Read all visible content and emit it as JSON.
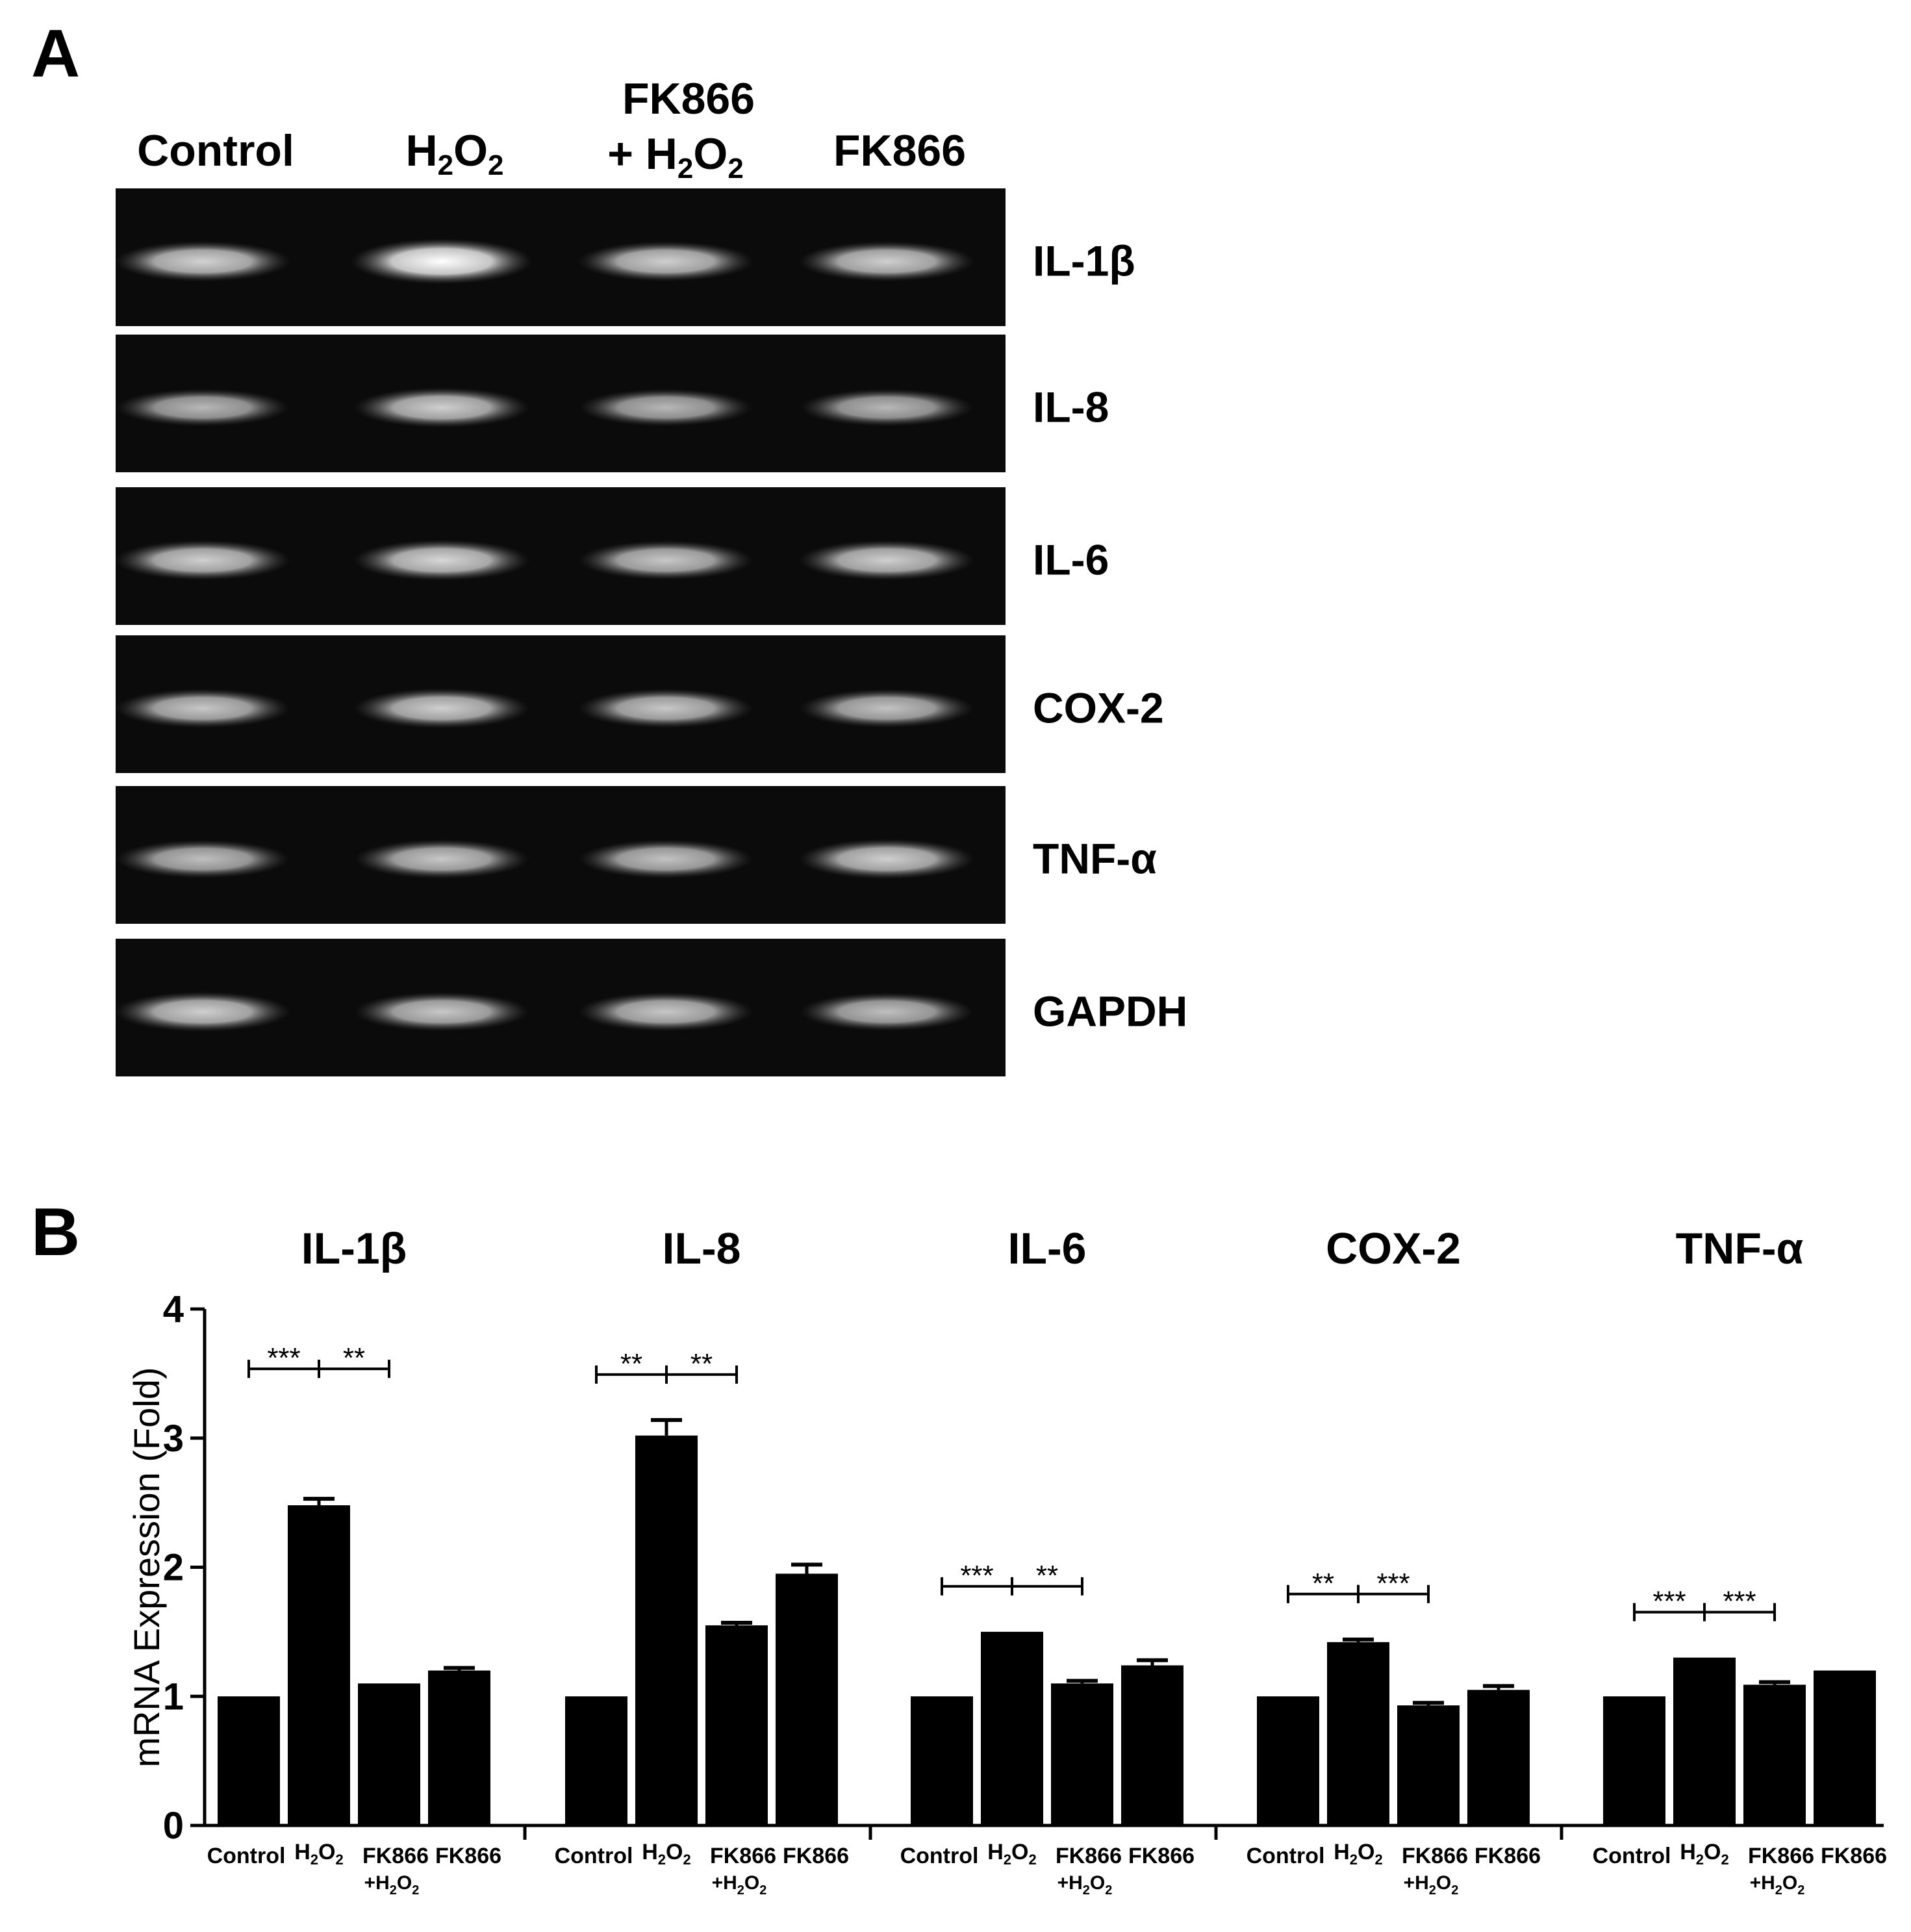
{
  "panel_a": {
    "label": "A",
    "lanes": [
      {
        "main": "Control",
        "sub": ""
      },
      {
        "main": "H",
        "sub": "2",
        "main2": "O",
        "sub2": "2"
      },
      {
        "line1": "FK866",
        "line2_main": "+ H",
        "sub": "2",
        "main2": "O",
        "sub2": "2"
      },
      {
        "main": "FK866",
        "sub": ""
      }
    ],
    "genes": [
      "IL-1β",
      "IL-8",
      "IL-6",
      "COX-2",
      "TNF-α",
      "GAPDH"
    ],
    "band_intensity": [
      [
        0.72,
        1.0,
        0.7,
        0.7
      ],
      [
        0.55,
        0.7,
        0.55,
        0.55
      ],
      [
        0.7,
        0.75,
        0.65,
        0.7
      ],
      [
        0.65,
        0.7,
        0.65,
        0.62
      ],
      [
        0.6,
        0.65,
        0.62,
        0.7
      ],
      [
        0.7,
        0.65,
        0.65,
        0.6
      ]
    ]
  },
  "panel_b": {
    "label": "B",
    "x_tick_labels": [
      "Control",
      "H2O2",
      "FK866 +H2O2",
      "FK866"
    ]
  },
  "chart_data": {
    "type": "bar",
    "ylabel": "mRNA Expression (Fold)",
    "ylim": [
      0,
      4
    ],
    "yticks": [
      0,
      1,
      2,
      3,
      4
    ],
    "groups": [
      {
        "name": "IL-1β",
        "categories": [
          "Control",
          "H2O2",
          "FK866 +H2O2",
          "FK866"
        ],
        "values": [
          1.0,
          2.48,
          1.1,
          1.2
        ],
        "errors": [
          0,
          0.05,
          0,
          0.02
        ],
        "significance": [
          {
            "from": 0,
            "to": 1,
            "label": "***"
          },
          {
            "from": 1,
            "to": 2,
            "label": "**"
          }
        ]
      },
      {
        "name": "IL-8",
        "categories": [
          "Control",
          "H2O2",
          "FK866 +H2O2",
          "FK866"
        ],
        "values": [
          1.0,
          3.02,
          1.55,
          1.95
        ],
        "errors": [
          0,
          0.12,
          0.02,
          0.07
        ],
        "significance": [
          {
            "from": 0,
            "to": 1,
            "label": "**"
          },
          {
            "from": 1,
            "to": 2,
            "label": "**"
          }
        ]
      },
      {
        "name": "IL-6",
        "categories": [
          "Control",
          "H2O2",
          "FK866 +H2O2",
          "FK866"
        ],
        "values": [
          1.0,
          1.5,
          1.1,
          1.24
        ],
        "errors": [
          0,
          0,
          0.02,
          0.04
        ],
        "significance": [
          {
            "from": 0,
            "to": 1,
            "label": "***"
          },
          {
            "from": 1,
            "to": 2,
            "label": "**"
          }
        ]
      },
      {
        "name": "COX-2",
        "categories": [
          "Control",
          "H2O2",
          "FK866 +H2O2",
          "FK866"
        ],
        "values": [
          1.0,
          1.42,
          0.93,
          1.05
        ],
        "errors": [
          0,
          0.02,
          0.02,
          0.03
        ],
        "significance": [
          {
            "from": 0,
            "to": 1,
            "label": "**"
          },
          {
            "from": 1,
            "to": 2,
            "label": "***"
          }
        ]
      },
      {
        "name": "TNF-α",
        "categories": [
          "Control",
          "H2O2",
          "FK866 +H2O2",
          "FK866"
        ],
        "values": [
          1.0,
          1.3,
          1.09,
          1.2
        ],
        "errors": [
          0,
          0,
          0.02,
          0
        ],
        "significance": [
          {
            "from": 0,
            "to": 1,
            "label": "***"
          },
          {
            "from": 1,
            "to": 2,
            "label": "***"
          }
        ]
      }
    ],
    "bar_color": "#000000",
    "grid": false,
    "legend": "none"
  }
}
